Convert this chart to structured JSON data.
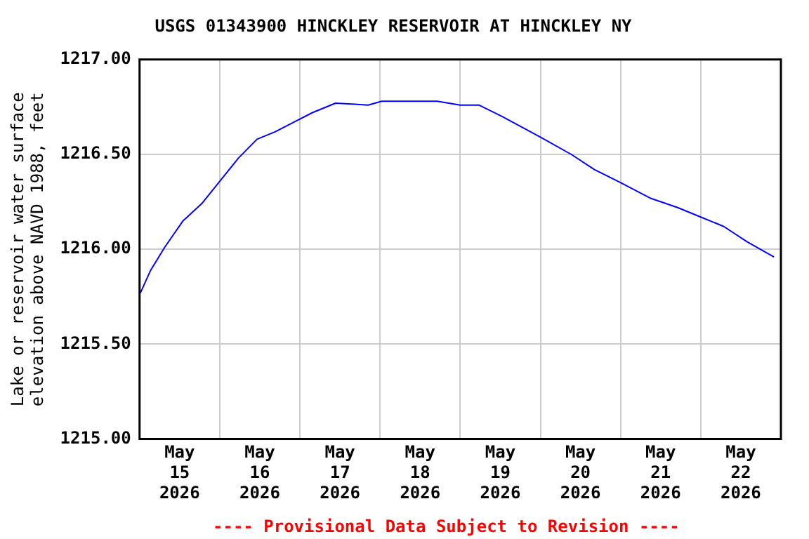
{
  "chart_data": {
    "type": "line",
    "title": "USGS 01343900 HINCKLEY RESERVOIR AT HINCKLEY NY",
    "ylabel": "Lake or reservoir water surface\nelevation above NAVD 1988, feet",
    "annotations": [
      "---- Provisional Data Subject to Revision ----"
    ],
    "x": [
      "2026-05-15T00:15",
      "2026-05-15T03:20",
      "2026-05-15T07:30",
      "2026-05-15T13:00",
      "2026-05-15T18:35",
      "2026-05-16T00:05",
      "2026-05-16T05:35",
      "2026-05-16T11:10",
      "2026-05-16T16:40",
      "2026-05-16T22:10",
      "2026-05-17T03:45",
      "2026-05-17T10:40",
      "2026-05-17T20:25",
      "2026-05-18T00:30",
      "2026-05-18T17:05",
      "2026-05-19T00:00",
      "2026-05-19T05:35",
      "2026-05-19T12:30",
      "2026-05-20T00:05",
      "2026-05-20T09:15",
      "2026-05-20T16:10",
      "2026-05-21T00:10",
      "2026-05-21T08:50",
      "2026-05-21T17:05",
      "2026-05-22T00:00",
      "2026-05-22T06:55",
      "2026-05-22T13:50",
      "2026-05-22T21:55"
    ],
    "series": [
      {
        "color": "#0000ff",
        "values": [
          1215.77,
          1215.89,
          1216.01,
          1216.15,
          1216.24,
          1216.36,
          1216.48,
          1216.58,
          1216.62,
          1216.67,
          1216.72,
          1216.77,
          1216.76,
          1216.78,
          1216.78,
          1216.76,
          1216.76,
          1216.7,
          1216.59,
          1216.5,
          1216.42,
          1216.35,
          1216.27,
          1216.22,
          1216.17,
          1216.12,
          1216.04,
          1215.96
        ]
      }
    ],
    "xlim": [
      "2026-05-15T00:00",
      "2026-05-23T00:00"
    ],
    "xticks": [
      {
        "value": "2026-05-15T00:00",
        "label": null
      },
      {
        "value": "2026-05-15T12:00",
        "label": "May\n15\n2026"
      },
      {
        "value": "2026-05-16T00:00",
        "label": null
      },
      {
        "value": "2026-05-16T12:00",
        "label": "May\n16\n2026"
      },
      {
        "value": "2026-05-17T00:00",
        "label": null
      },
      {
        "value": "2026-05-17T12:00",
        "label": "May\n17\n2026"
      },
      {
        "value": "2026-05-18T00:00",
        "label": null
      },
      {
        "value": "2026-05-18T12:00",
        "label": "May\n18\n2026"
      },
      {
        "value": "2026-05-19T00:00",
        "label": null
      },
      {
        "value": "2026-05-19T12:00",
        "label": "May\n19\n2026"
      },
      {
        "value": "2026-05-20T00:00",
        "label": null
      },
      {
        "value": "2026-05-20T12:00",
        "label": "May\n20\n2026"
      },
      {
        "value": "2026-05-21T00:00",
        "label": null
      },
      {
        "value": "2026-05-21T12:00",
        "label": "May\n21\n2026"
      },
      {
        "value": "2026-05-22T00:00",
        "label": null
      },
      {
        "value": "2026-05-22T12:00",
        "label": "May\n22\n2026"
      },
      {
        "value": "2026-05-23T00:00",
        "label": null
      }
    ],
    "ylim": [
      1215.0,
      1217.0
    ],
    "yticks": [
      {
        "value": 1215.0,
        "label": "1215.00"
      },
      {
        "value": 1215.5,
        "label": "1215.50"
      },
      {
        "value": 1216.0,
        "label": "1216.00"
      },
      {
        "value": 1216.5,
        "label": "1216.50"
      },
      {
        "value": 1217.0,
        "label": "1217.00"
      }
    ],
    "grid": true,
    "legend": false,
    "marker": "none",
    "line_style": "solid"
  }
}
